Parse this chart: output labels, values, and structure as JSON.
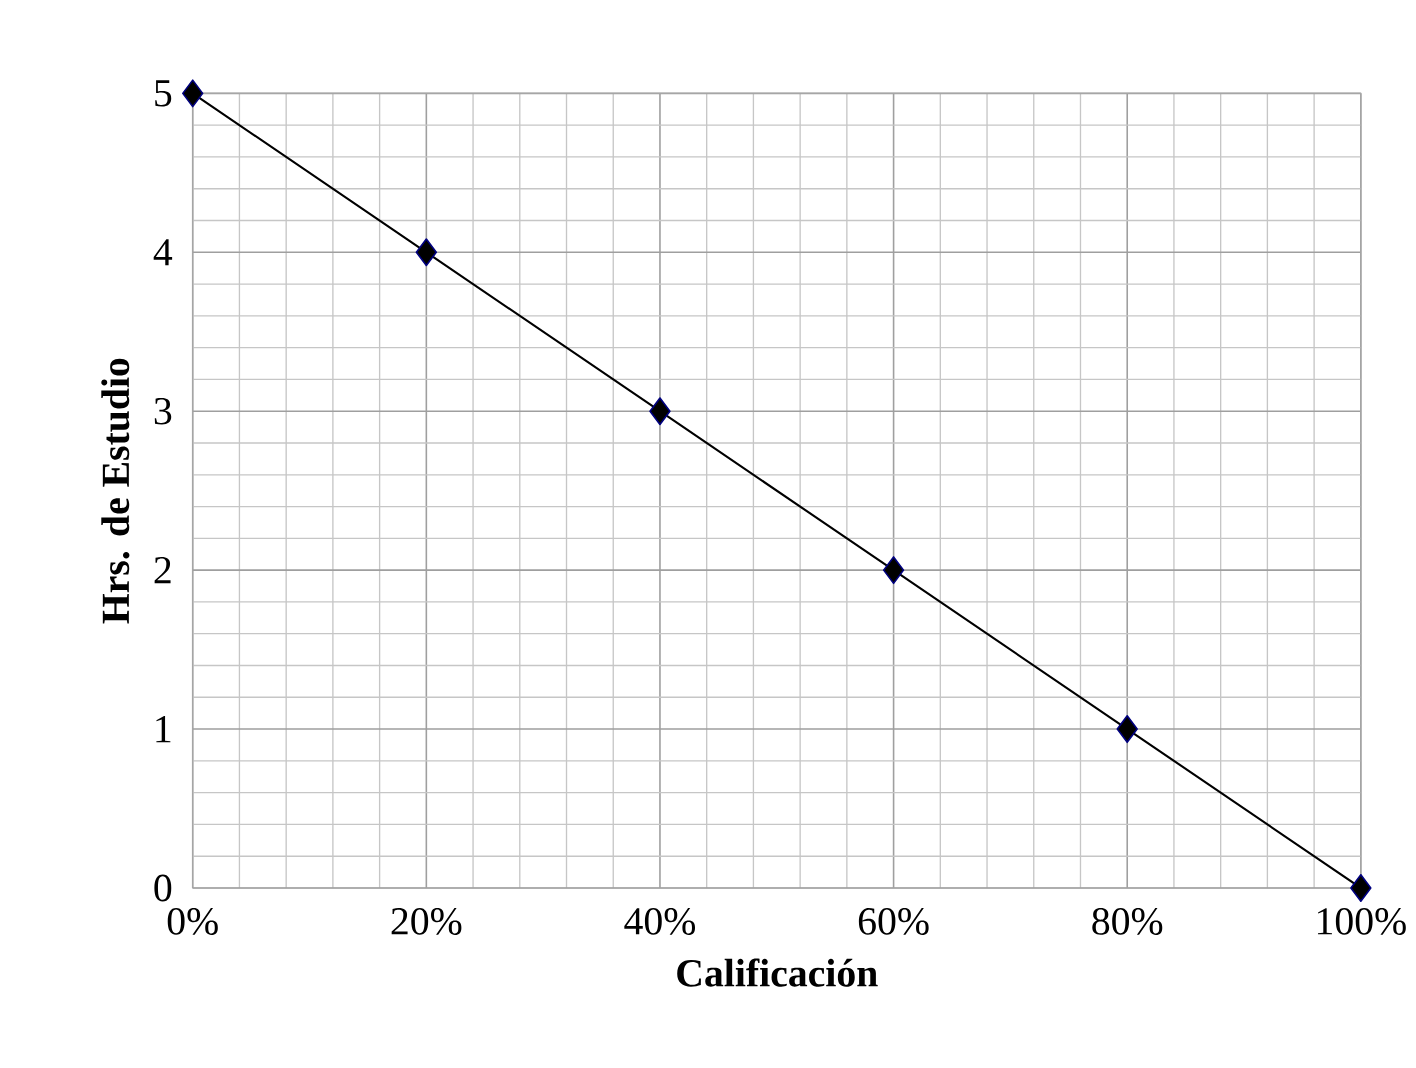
{
  "chart_data": {
    "type": "line",
    "xlabel": "Calificación",
    "ylabel": "Hrs. de Estudio",
    "x": [
      0,
      20,
      40,
      60,
      80,
      100
    ],
    "series": [
      {
        "color": "#000000",
        "values": [
          5,
          4,
          3,
          2,
          1,
          0
        ]
      }
    ],
    "xlim": [
      0,
      100
    ],
    "xticks": [
      {
        "value": 0,
        "label": "0%"
      },
      {
        "value": 20,
        "label": "20%"
      },
      {
        "value": 40,
        "label": "40%"
      },
      {
        "value": 60,
        "label": "60%"
      },
      {
        "value": 80,
        "label": "80%"
      },
      {
        "value": 100,
        "label": "100%"
      }
    ],
    "ylim": [
      0,
      5
    ],
    "yticks": [
      0,
      1,
      2,
      3,
      4,
      5
    ],
    "grid": true,
    "marker": "diamond",
    "line_style": "solid"
  }
}
